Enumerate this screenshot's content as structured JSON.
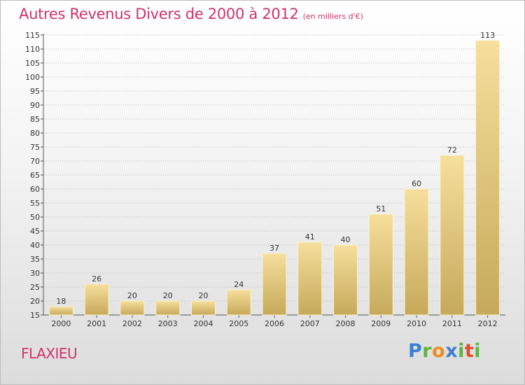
{
  "header": {
    "title": "Autres Revenus Divers de 2000 à 2012",
    "subtitle": "(en milliers d'€)"
  },
  "footer": {
    "place": "FLAXIEU",
    "logo": [
      "P",
      "r",
      "o",
      "x",
      "i",
      "t",
      "i"
    ]
  },
  "chart_data": {
    "type": "bar",
    "title": "Autres Revenus Divers de 2000 à 2012",
    "subtitle": "(en milliers d'€)",
    "xlabel": "",
    "ylabel": "",
    "categories": [
      "2000",
      "2001",
      "2002",
      "2003",
      "2004",
      "2005",
      "2006",
      "2007",
      "2008",
      "2009",
      "2010",
      "2011",
      "2012"
    ],
    "values": [
      18,
      26,
      20,
      20,
      20,
      24,
      37,
      41,
      40,
      51,
      60,
      72,
      113
    ],
    "ylim": [
      15,
      115
    ],
    "yticks": [
      15,
      20,
      25,
      30,
      35,
      40,
      45,
      50,
      55,
      60,
      65,
      70,
      75,
      80,
      85,
      90,
      95,
      100,
      105,
      110,
      115
    ],
    "grid": true,
    "legend": "none",
    "colors": {
      "bar_light": "#f5dc98",
      "bar_dark": "#c8ab5c",
      "grid": "#bbbbbb"
    }
  }
}
